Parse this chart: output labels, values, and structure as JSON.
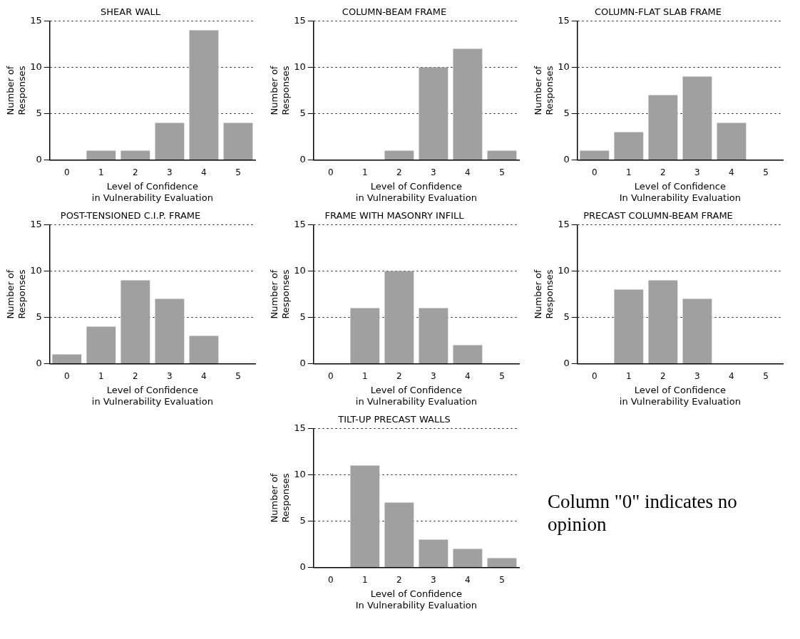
{
  "chart_data": [
    {
      "type": "bar",
      "title": "SHEAR WALL",
      "categories": [
        "0",
        "1",
        "2",
        "3",
        "4",
        "5"
      ],
      "values": [
        0,
        1,
        1,
        4,
        14,
        4
      ],
      "color": "#a0a0a0",
      "xlabel": "Level of Confidence\nin Vulnerability Evaluation",
      "ylabel": "Number of\nResponses",
      "ylim": [
        0,
        15
      ],
      "yticks": [
        0,
        5,
        10,
        15
      ],
      "grid": "y",
      "line_style": "dotted"
    },
    {
      "type": "bar",
      "title": "COLUMN-BEAM FRAME",
      "categories": [
        "0",
        "1",
        "2",
        "3",
        "4",
        "5"
      ],
      "values": [
        0,
        0,
        1,
        10,
        12,
        1
      ],
      "color": "#a0a0a0",
      "xlabel": "Level of Confidence\nin Vulnerability Evaluation",
      "ylabel": "Number of\nResponses",
      "ylim": [
        0,
        15
      ],
      "yticks": [
        0,
        5,
        10,
        15
      ],
      "grid": "y",
      "line_style": "dotted"
    },
    {
      "type": "bar",
      "title": "COLUMN-FLAT SLAB FRAME",
      "categories": [
        "0",
        "1",
        "2",
        "3",
        "4",
        "5"
      ],
      "values": [
        1,
        3,
        7,
        9,
        4,
        0
      ],
      "color": "#a0a0a0",
      "xlabel": "Level of Confidence\nIn Vulnerability Evaluation",
      "ylabel": "Number of\nResponses",
      "ylim": [
        0,
        15
      ],
      "yticks": [
        0,
        5,
        10,
        15
      ],
      "grid": "y",
      "line_style": "dotted"
    },
    {
      "type": "bar",
      "title": "POST-TENSIONED C.I.P. FRAME",
      "categories": [
        "0",
        "1",
        "2",
        "3",
        "4",
        "5"
      ],
      "values": [
        1,
        4,
        9,
        7,
        3,
        0
      ],
      "color": "#a0a0a0",
      "xlabel": "Level of Confidence\nin Vulnerability Evaluation",
      "ylabel": "Number of\nResponses",
      "ylim": [
        0,
        15
      ],
      "yticks": [
        0,
        5,
        10,
        15
      ],
      "grid": "y",
      "line_style": "dotted"
    },
    {
      "type": "bar",
      "title": "FRAME WITH MASONRY INFILL",
      "categories": [
        "0",
        "1",
        "2",
        "3",
        "4",
        "5"
      ],
      "values": [
        0,
        6,
        10,
        6,
        2,
        0
      ],
      "color": "#a0a0a0",
      "xlabel": "Level of Confidence\nin Vulnerability Evaluation",
      "ylabel": "Number of\nResponses",
      "ylim": [
        0,
        15
      ],
      "yticks": [
        0,
        5,
        10,
        15
      ],
      "grid": "y",
      "line_style": "dotted"
    },
    {
      "type": "bar",
      "title": "PRECAST COLUMN-BEAM FRAME",
      "categories": [
        "0",
        "1",
        "2",
        "3",
        "4",
        "5"
      ],
      "values": [
        0,
        8,
        9,
        7,
        0,
        0
      ],
      "color": "#a0a0a0",
      "xlabel": "Level of Confidence\nin Vulnerability Evaluation",
      "ylabel": "Number of\nResponses",
      "ylim": [
        0,
        15
      ],
      "yticks": [
        0,
        5,
        10,
        15
      ],
      "grid": "y",
      "line_style": "dotted"
    },
    {
      "type": "bar",
      "title": "TILT-UP PRECAST WALLS",
      "categories": [
        "0",
        "1",
        "2",
        "3",
        "4",
        "5"
      ],
      "values": [
        0,
        11,
        7,
        3,
        2,
        1
      ],
      "color": "#a0a0a0",
      "xlabel": "Level of Confidence\nIn Vulnerability Evaluation",
      "ylabel": "Number of\nResponses",
      "ylim": [
        0,
        15
      ],
      "yticks": [
        0,
        5,
        10,
        15
      ],
      "grid": "y",
      "line_style": "dotted"
    },
    {
      "type": "other",
      "annotations": [
        "Column \"0\" indicates no opinion"
      ]
    }
  ]
}
